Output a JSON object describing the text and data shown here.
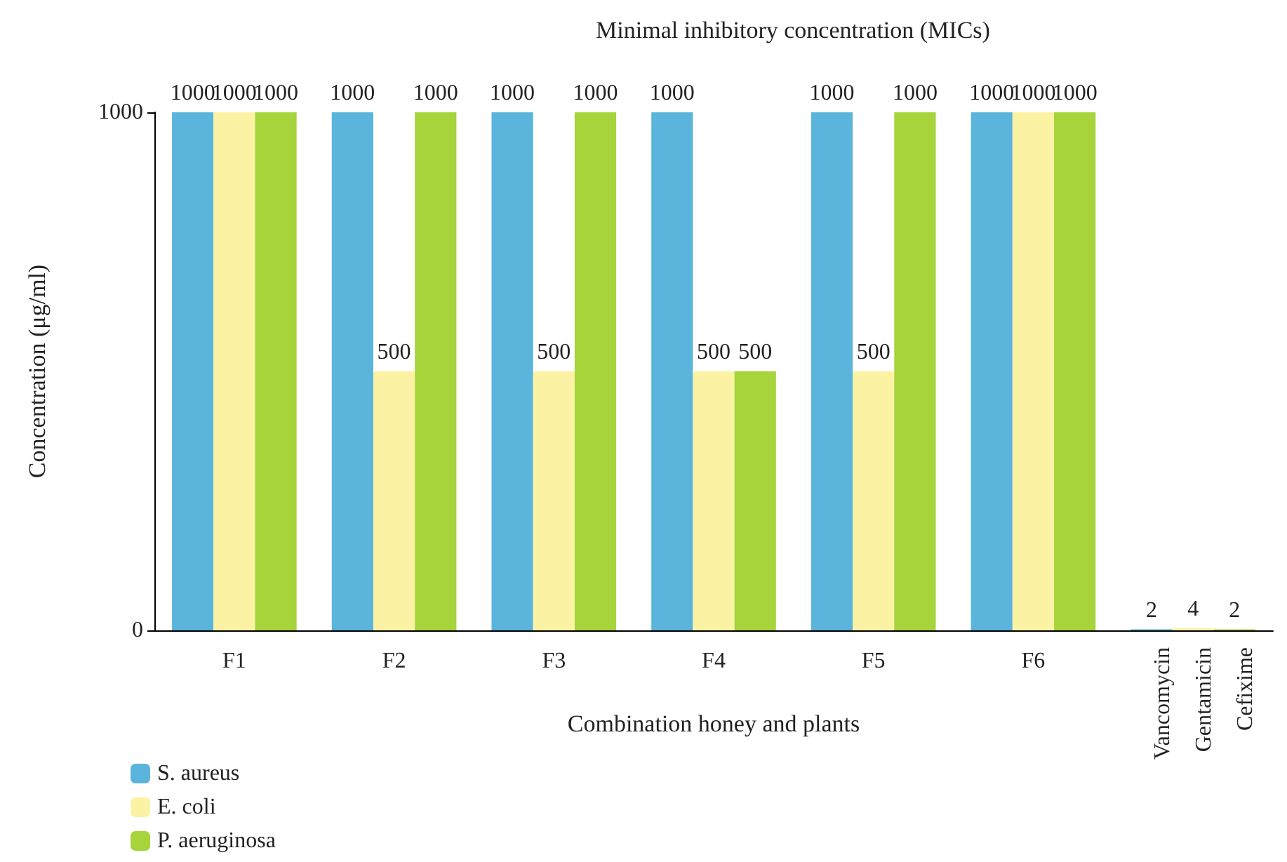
{
  "chart_data": {
    "type": "bar",
    "title": "Minimal inhibitory concentration (MICs)",
    "xlabel": "Combination honey and plants",
    "ylabel": "Concentration (μg/ml)",
    "categories": [
      "F1",
      "F2",
      "F3",
      "F4",
      "F5",
      "F6",
      null
    ],
    "series": [
      {
        "name": "S. aureus",
        "color": "#5ab4dc",
        "values": [
          1000,
          1000,
          1000,
          1000,
          1000,
          1000,
          2
        ]
      },
      {
        "name": "E. coli",
        "color": "#fbf3a3",
        "values": [
          1000,
          500,
          500,
          500,
          500,
          1000,
          4
        ]
      },
      {
        "name": "P. aeruginosa",
        "color": "#a6d43a",
        "values": [
          1000,
          1000,
          1000,
          500,
          1000,
          1000,
          2
        ]
      }
    ],
    "annotations": [
      "Vancomycin",
      "Gentamicin",
      "Cefixime"
    ],
    "ylim": [
      0,
      1000
    ],
    "yticks": [
      0,
      1000
    ],
    "data_labels": true,
    "grid": false,
    "legend": "bottom left"
  }
}
